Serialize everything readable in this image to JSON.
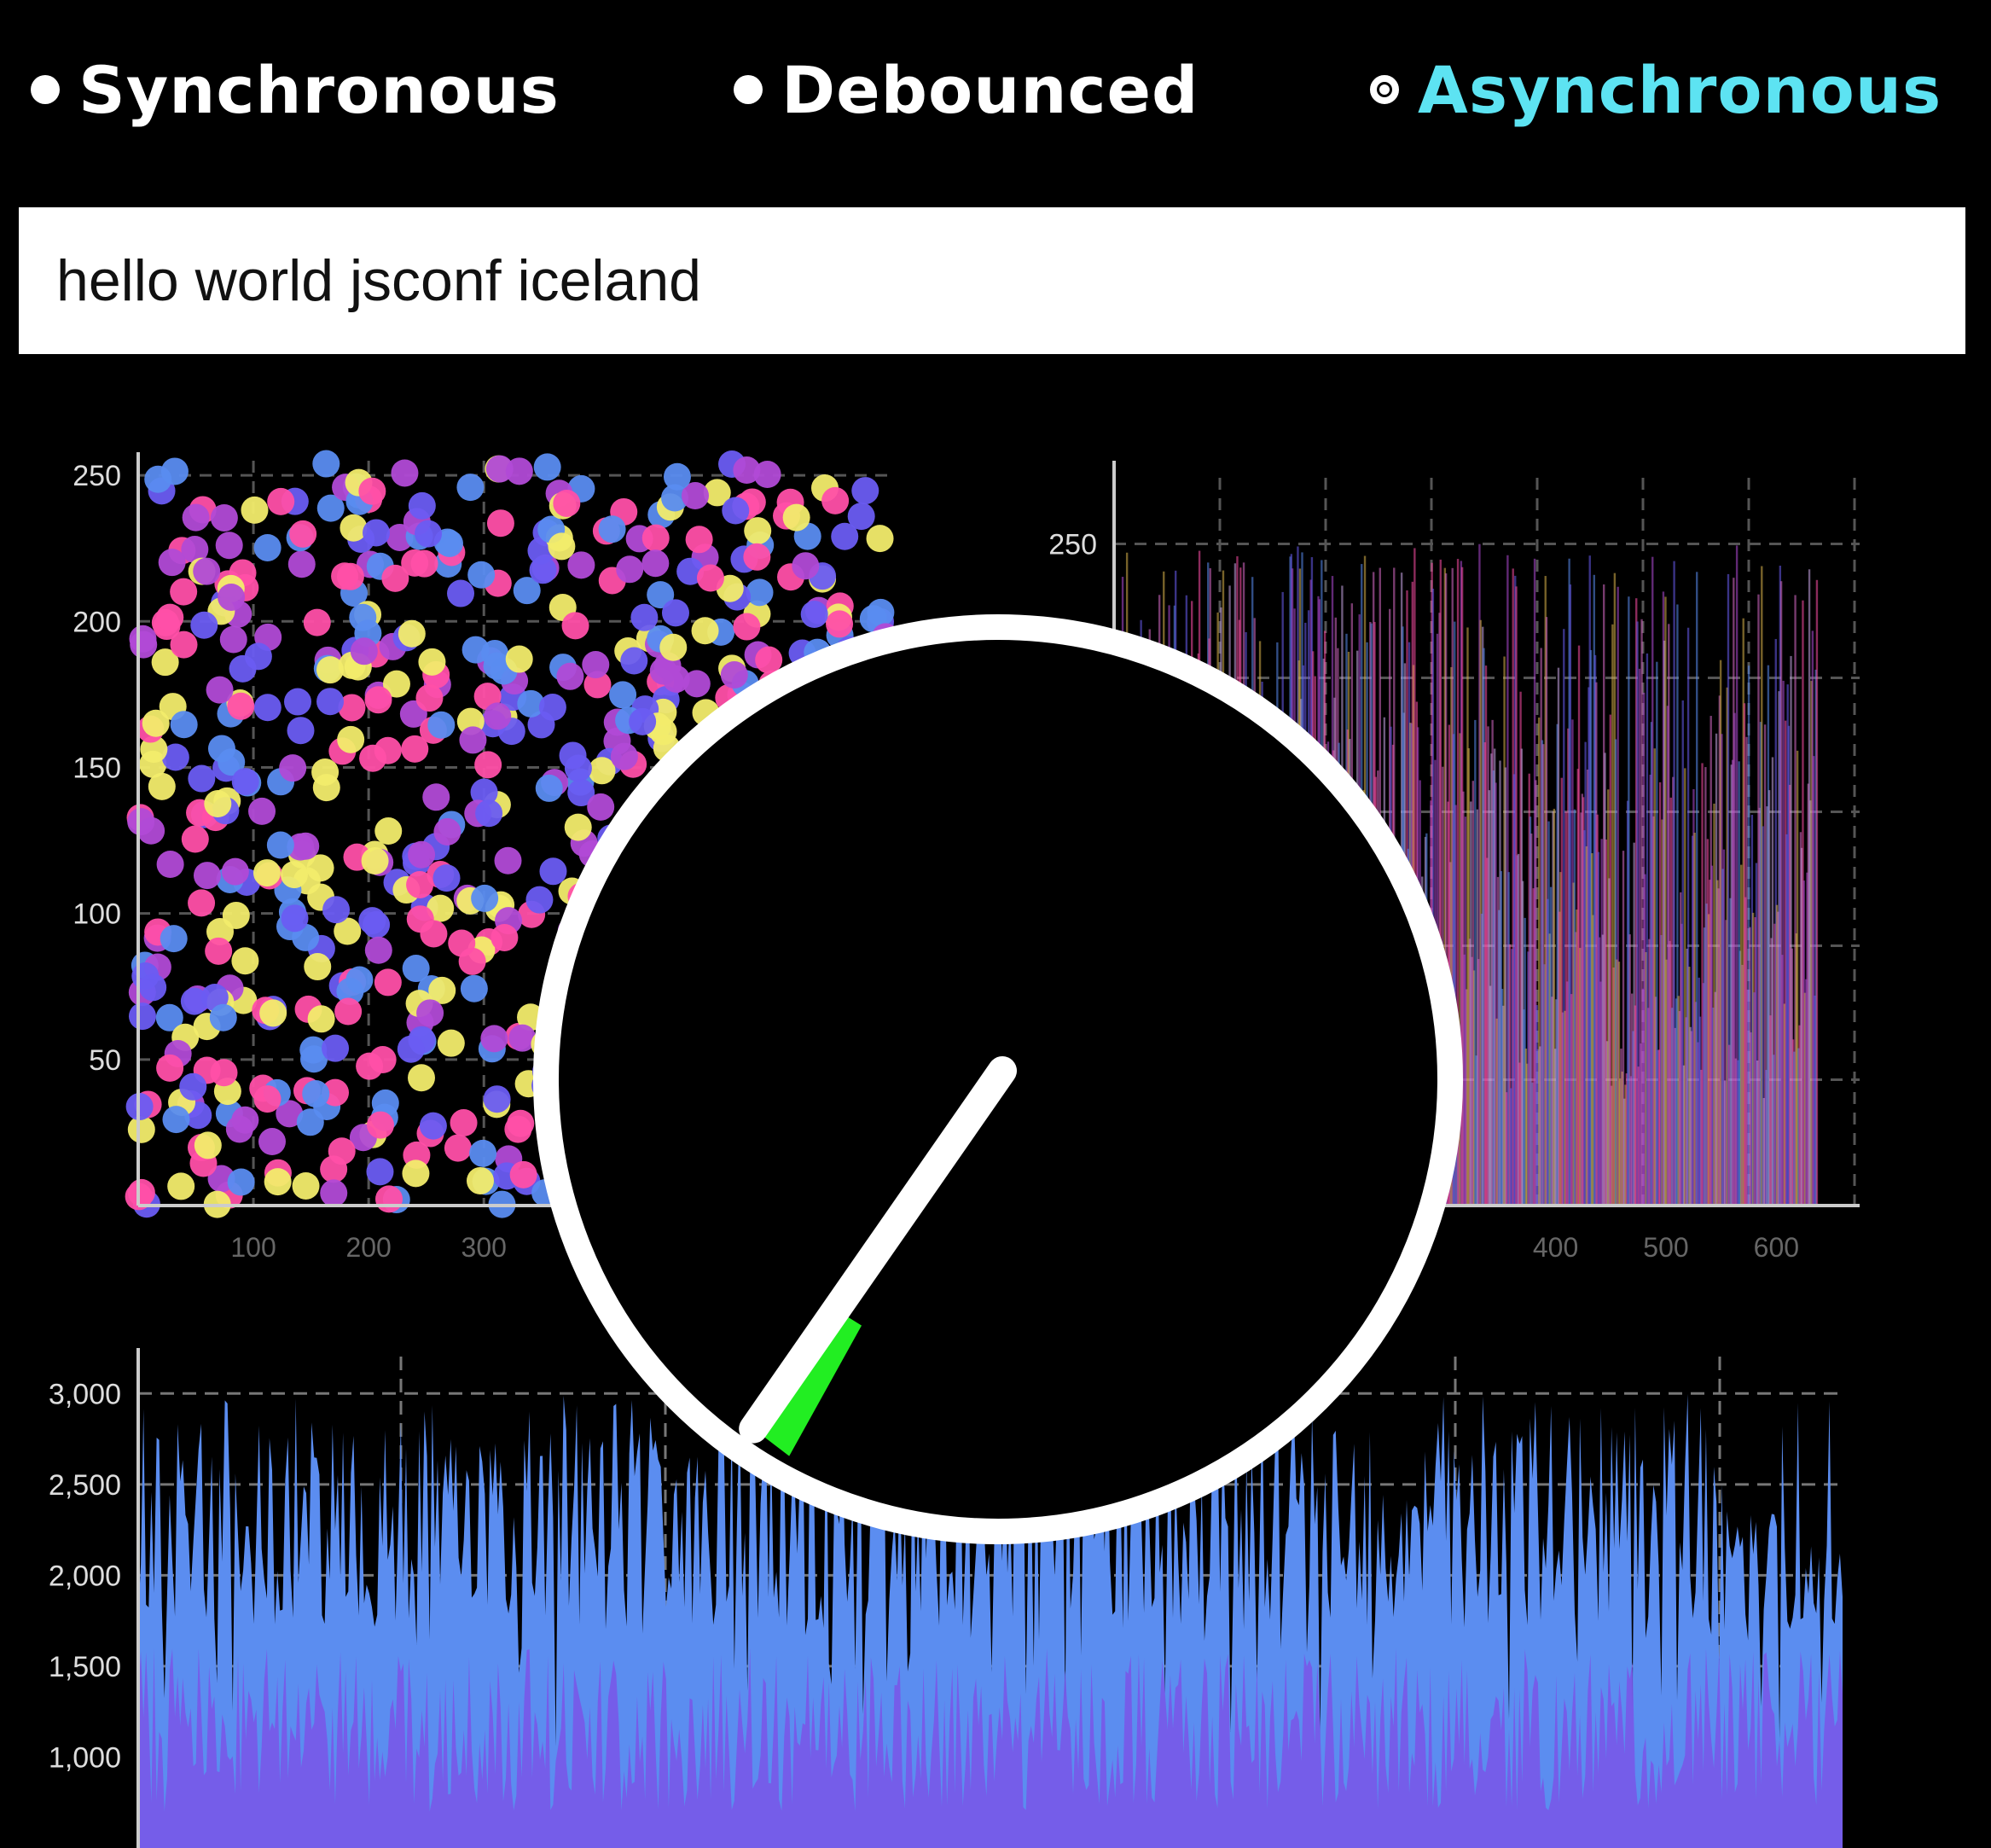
{
  "modes": [
    {
      "label": "Synchronous",
      "selected": false
    },
    {
      "label": "Debounced",
      "selected": false
    },
    {
      "label": "Asynchronous",
      "selected": true
    }
  ],
  "colors": {
    "background": "#000000",
    "selected_label": "#5de3f2",
    "label": "#ffffff",
    "palette": [
      "#ff4fa8",
      "#b14ad6",
      "#6a5cf2",
      "#5a8cf0",
      "#f2ec6b"
    ],
    "area_fill": "#5b8df0",
    "area_under": "#7a55e8",
    "needle_trail": "#22ee22"
  },
  "search": {
    "value": "hello world jsconf iceland"
  },
  "clock": {
    "icon": "gauge-icon",
    "needle_angle_deg": 215
  },
  "chart_data": [
    {
      "type": "scatter",
      "id": "scatter",
      "point_count": 700,
      "xlim": [
        0,
        650
      ],
      "ylim": [
        0,
        255
      ],
      "x_ticks": [
        100,
        200,
        300
      ],
      "y_ticks": [
        50,
        100,
        150,
        200,
        250
      ],
      "x_tick_labels": [
        "100",
        "200",
        "300"
      ],
      "y_tick_labels": [
        "50",
        "100",
        "150",
        "200",
        "250"
      ],
      "grid": true
    },
    {
      "type": "bar",
      "id": "bars",
      "bar_count": 650,
      "xlim": [
        0,
        660
      ],
      "ylim": [
        0,
        275
      ],
      "x_ticks": [
        400,
        500,
        600
      ],
      "y_ticks": [
        250
      ],
      "x_tick_labels": [
        "400",
        "500",
        "600"
      ],
      "y_tick_labels": [
        "250"
      ],
      "grid": true
    },
    {
      "type": "area",
      "id": "area",
      "point_count": 650,
      "ylim": [
        500,
        3250
      ],
      "y_ticks": [
        1000,
        1500,
        2000,
        2500,
        3000
      ],
      "y_tick_labels": [
        "1,000",
        "1,500",
        "2,000",
        "2,500",
        "3,000"
      ],
      "grid": true
    }
  ]
}
